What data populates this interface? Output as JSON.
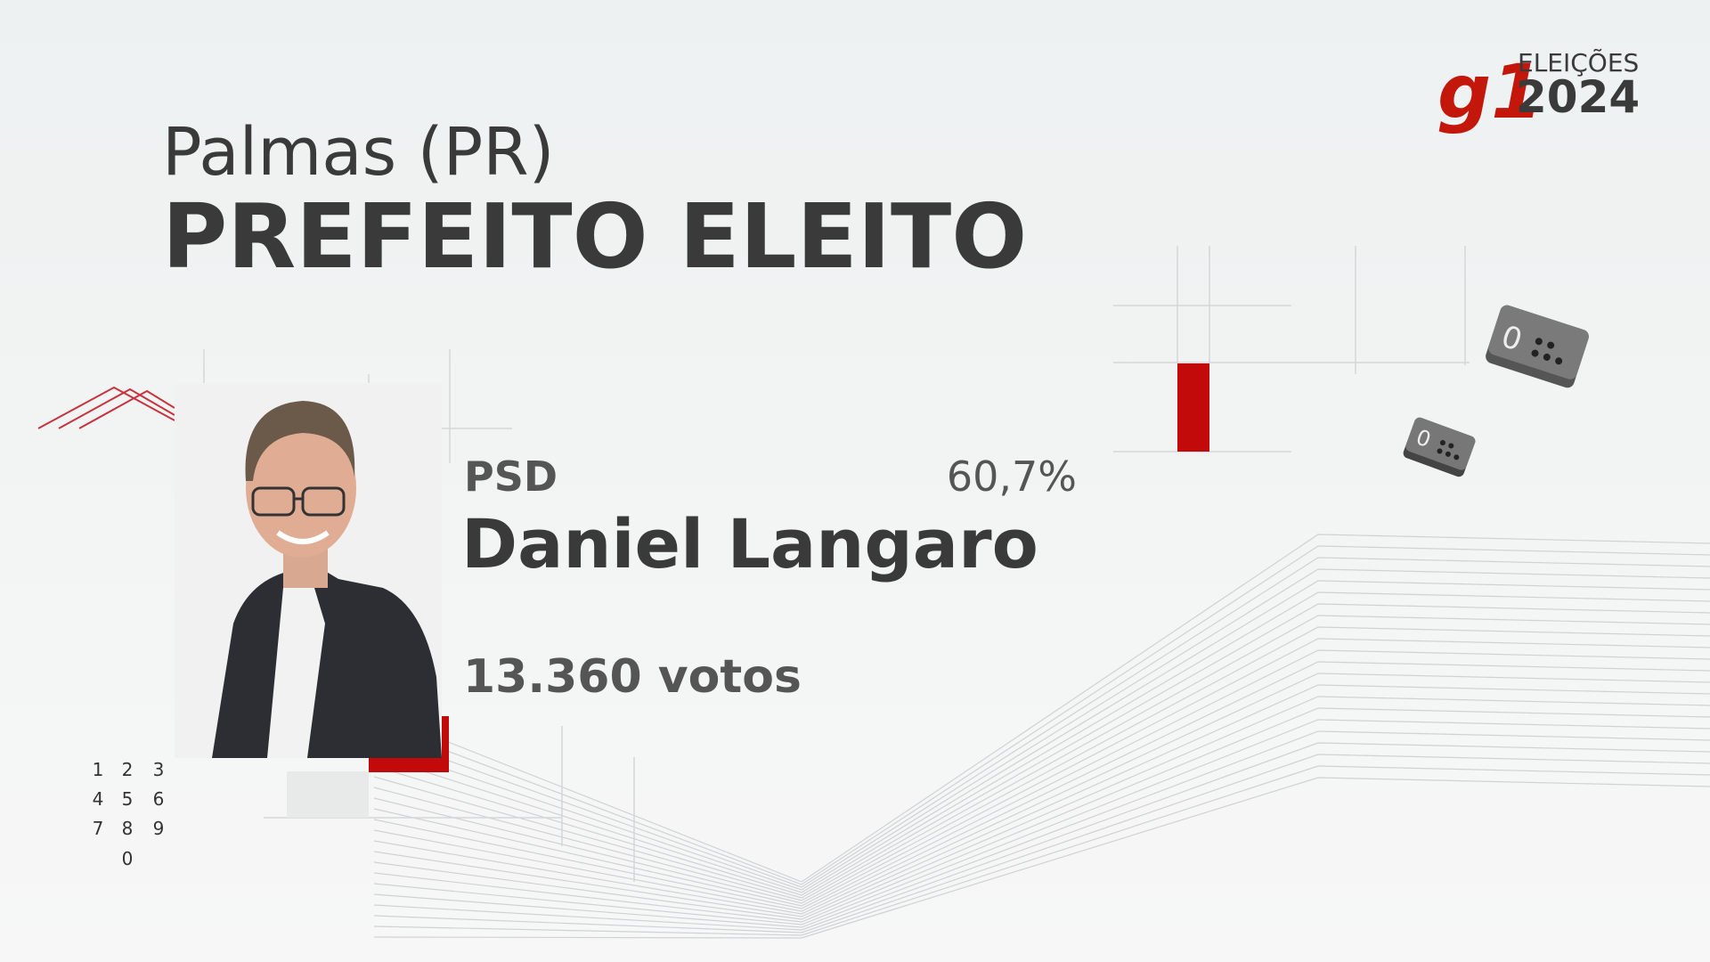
{
  "header": {
    "logo": "g1",
    "event": "ELEIÇÕES",
    "year": "2024"
  },
  "city": "Palmas (PR)",
  "title": "PREFEITO ELEITO",
  "candidate": {
    "party": "PSD",
    "percentage": "60,7%",
    "name": "Daniel Langaro",
    "votes": "13.360 votos"
  },
  "keypad": [
    [
      "1",
      "2",
      "3"
    ],
    [
      "4",
      "5",
      "6"
    ],
    [
      "7",
      "8",
      "9"
    ],
    [
      "0"
    ]
  ],
  "dice": [
    "0",
    "0"
  ]
}
